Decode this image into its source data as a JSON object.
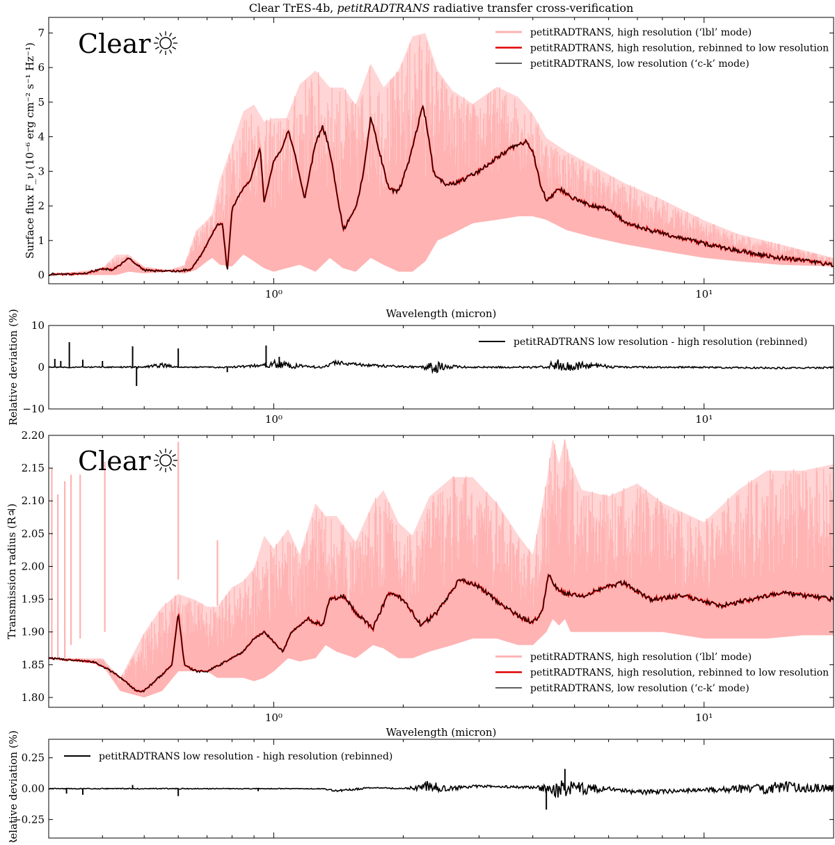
{
  "chart_data": {
    "title": "Clear TrES-4b, petitRADTRANS radiative transfer cross-verification",
    "title_parts": {
      "pre": "Clear TrES-4b, ",
      "italic": "petitRADTRANS",
      "post": " radiative transfer cross-verification"
    },
    "x_scale": "log",
    "xlim": [
      0.3,
      20
    ],
    "x_major_ticks": [
      {
        "value": 1,
        "label": "10⁰"
      },
      {
        "value": 10,
        "label": "10¹"
      }
    ],
    "colors": {
      "high_res": "#ffb3b3",
      "rebinned": "#e00000",
      "low_res": "#000000",
      "axis": "#000000"
    },
    "panels": [
      {
        "type": "line",
        "id": "emission",
        "ylabel": "Surface flux F_ν (10⁻⁶ erg cm⁻² s⁻¹ Hz⁻¹)",
        "xlabel": "Wavelength (micron)",
        "ylim": [
          -0.25,
          7.45
        ],
        "yticks": [
          0,
          1,
          2,
          3,
          4,
          5,
          6,
          7
        ],
        "ytick_labels": [
          "0",
          "1",
          "2",
          "3",
          "4",
          "5",
          "6",
          "7"
        ],
        "annotation": "Clear",
        "annotation_icon": "sun-icon",
        "legend_position": "top-right",
        "series": [
          {
            "name": "petitRADTRANS, high resolution (‘lbl’ mode)",
            "style": "band",
            "x": [
              0.3,
              0.4,
              0.43,
              0.46,
              0.5,
              0.57,
              0.62,
              0.66,
              0.7,
              0.72,
              0.75,
              0.8,
              0.85,
              0.9,
              0.95,
              1.0,
              1.07,
              1.15,
              1.25,
              1.35,
              1.45,
              1.55,
              1.68,
              1.8,
              1.95,
              2.1,
              2.25,
              2.4,
              2.6,
              2.9,
              3.3,
              3.7,
              4.0,
              4.3,
              4.8,
              5.5,
              6.5,
              8,
              10,
              12,
              15,
              20
            ],
            "lower": [
              0,
              0,
              0,
              0.1,
              0.05,
              0.1,
              0.05,
              0.15,
              0.4,
              0.5,
              0.3,
              0.25,
              0.6,
              0.4,
              0.2,
              0.1,
              0.2,
              0.3,
              0.1,
              0.5,
              0.2,
              0.1,
              0.5,
              0.3,
              0.1,
              0.1,
              0.4,
              1.0,
              1.2,
              1.5,
              1.6,
              1.7,
              1.7,
              1.6,
              1.3,
              1.1,
              0.9,
              0.7,
              0.5,
              0.4,
              0.3,
              0.25
            ],
            "upper": [
              0,
              0.2,
              0.6,
              0.6,
              0.25,
              0.15,
              0.3,
              1.3,
              1.6,
              1.8,
              2.8,
              3.8,
              4.8,
              5.0,
              4.5,
              4.6,
              4.6,
              5.6,
              6.0,
              5.5,
              5.5,
              5.0,
              6.2,
              5.5,
              6.0,
              7.0,
              7.1,
              6.0,
              5.4,
              5.0,
              5.5,
              5.2,
              4.7,
              4.0,
              3.6,
              3.2,
              2.7,
              2.2,
              1.6,
              1.2,
              0.9,
              0.5
            ]
          },
          {
            "name": "petitRADTRANS, high resolution, rebinned to low resolution",
            "style": "line",
            "x": [
              0.3,
              0.36,
              0.4,
              0.42,
              0.44,
              0.46,
              0.48,
              0.5,
              0.55,
              0.6,
              0.64,
              0.68,
              0.72,
              0.74,
              0.76,
              0.78,
              0.8,
              0.83,
              0.86,
              0.88,
              0.9,
              0.93,
              0.95,
              1.0,
              1.05,
              1.08,
              1.12,
              1.18,
              1.25,
              1.3,
              1.35,
              1.45,
              1.55,
              1.62,
              1.68,
              1.75,
              1.85,
              1.95,
              2.05,
              2.15,
              2.22,
              2.27,
              2.35,
              2.5,
              2.7,
              3.0,
              3.3,
              3.6,
              3.85,
              4.0,
              4.15,
              4.3,
              4.6,
              5.0,
              5.5,
              6.0,
              6.6,
              7.5,
              9,
              11,
              14,
              20
            ],
            "y": [
              0.02,
              0.03,
              0.18,
              0.15,
              0.3,
              0.5,
              0.3,
              0.15,
              0.12,
              0.12,
              0.15,
              0.6,
              1.2,
              1.45,
              1.5,
              0.1,
              1.9,
              2.3,
              2.6,
              2.7,
              3.1,
              3.7,
              2.1,
              3.3,
              3.7,
              4.2,
              3.5,
              2.2,
              3.8,
              4.3,
              3.6,
              1.3,
              1.9,
              3.0,
              4.6,
              3.7,
              2.5,
              2.4,
              3.2,
              4.2,
              4.9,
              4.3,
              3.0,
              2.6,
              2.7,
              3.0,
              3.4,
              3.7,
              3.85,
              3.6,
              2.7,
              2.15,
              2.5,
              2.2,
              2.0,
              1.9,
              1.5,
              1.3,
              1.05,
              0.8,
              0.55,
              0.3
            ]
          },
          {
            "name": "petitRADTRANS, low resolution (‘c-k’ mode)",
            "style": "line",
            "same_as": "rebinned"
          }
        ]
      },
      {
        "type": "line",
        "id": "emission_residual",
        "ylabel": "Relative deviation (%)",
        "ylim": [
          -10,
          10
        ],
        "yticks": [
          -10,
          0,
          10
        ],
        "ytick_labels": [
          "−10",
          "0",
          "10"
        ],
        "legend_position": "top-right",
        "series": [
          {
            "name": "petitRADTRANS low resolution - high resolution (rebinned)",
            "style": "line",
            "x": [
              0.3,
              0.5,
              0.55,
              0.6,
              0.8,
              0.95,
              1.0,
              1.1,
              1.3,
              1.4,
              1.6,
              1.8,
              2.2,
              2.35,
              2.5,
              2.8,
              3.5,
              4.3,
              4.5,
              5.0,
              5.5,
              6.5,
              9,
              15,
              20
            ],
            "y": [
              0,
              0,
              0.5,
              0,
              0,
              0.5,
              0.8,
              0.3,
              0,
              1.2,
              0.5,
              0.3,
              0,
              0,
              0.3,
              0,
              0,
              0,
              0.7,
              0.2,
              0.4,
              0,
              0,
              -0.2,
              -0.1
            ],
            "noise": [
              0.1,
              0.2,
              0.6,
              0.1,
              0.2,
              0.4,
              1.0,
              0.6,
              0.2,
              0.5,
              0.4,
              0.3,
              0.2,
              1.6,
              0.8,
              0.2,
              0.2,
              0.3,
              1.5,
              1.2,
              0.6,
              0.2,
              0.2,
              0.2,
              0.2
            ],
            "spikes": [
              [
                0.31,
                2
              ],
              [
                0.32,
                1.5
              ],
              [
                0.335,
                6
              ],
              [
                0.36,
                1.8
              ],
              [
                0.4,
                1.5
              ],
              [
                0.47,
                5
              ],
              [
                0.48,
                -4.5
              ],
              [
                0.6,
                4.5
              ],
              [
                0.78,
                -1.2
              ],
              [
                0.96,
                5.2
              ],
              [
                1.03,
                2.5
              ]
            ]
          }
        ]
      },
      {
        "type": "line",
        "id": "transmission",
        "ylabel": "Transmission radius (R♃)",
        "xlabel": "Wavelength (micron)",
        "ylim": [
          1.785,
          2.2
        ],
        "yticks": [
          1.8,
          1.85,
          1.9,
          1.95,
          2.0,
          2.05,
          2.1,
          2.15,
          2.2
        ],
        "ytick_labels": [
          "1.80",
          "1.85",
          "1.90",
          "1.95",
          "2.00",
          "2.05",
          "2.10",
          "2.15",
          "2.20"
        ],
        "annotation": "Clear",
        "annotation_icon": "sun-icon",
        "legend_position": "bottom-right",
        "series": [
          {
            "name": "petitRADTRANS, high resolution (‘lbl’ mode)",
            "style": "band",
            "x": [
              0.3,
              0.4,
              0.44,
              0.5,
              0.55,
              0.6,
              0.66,
              0.7,
              0.74,
              0.8,
              0.85,
              0.9,
              0.95,
              1.0,
              1.08,
              1.15,
              1.25,
              1.32,
              1.4,
              1.55,
              1.7,
              1.8,
              1.95,
              2.1,
              2.3,
              2.6,
              2.9,
              3.3,
              3.7,
              4.0,
              4.3,
              4.45,
              4.6,
              4.75,
              4.9,
              5.2,
              6.0,
              7,
              8,
              10,
              12,
              14,
              17,
              20
            ],
            "lower": [
              1.86,
              1.85,
              1.81,
              1.8,
              1.81,
              1.84,
              1.84,
              1.84,
              1.83,
              1.83,
              1.83,
              1.825,
              1.83,
              1.84,
              1.86,
              1.855,
              1.86,
              1.88,
              1.87,
              1.86,
              1.88,
              1.875,
              1.86,
              1.86,
              1.87,
              1.88,
              1.89,
              1.89,
              1.88,
              1.88,
              1.9,
              1.92,
              1.91,
              1.92,
              1.9,
              1.9,
              1.9,
              1.9,
              1.9,
              1.89,
              1.89,
              1.89,
              1.895,
              1.895
            ],
            "upper": [
              1.86,
              1.86,
              1.83,
              1.9,
              1.94,
              1.96,
              1.95,
              1.94,
              1.94,
              1.97,
              1.98,
              2.0,
              2.05,
              2.03,
              2.06,
              2.02,
              2.1,
              2.08,
              2.08,
              2.04,
              2.1,
              2.12,
              2.07,
              2.05,
              2.11,
              2.14,
              2.14,
              2.1,
              2.05,
              2.02,
              2.13,
              2.2,
              2.16,
              2.2,
              2.16,
              2.12,
              2.11,
              2.13,
              2.1,
              2.07,
              2.12,
              2.15,
              2.15,
              2.16
            ]
          },
          {
            "name": "petitRADTRANS, high resolution, rebinned to low resolution",
            "style": "line",
            "x": [
              0.3,
              0.34,
              0.38,
              0.42,
              0.44,
              0.46,
              0.48,
              0.5,
              0.55,
              0.58,
              0.6,
              0.62,
              0.66,
              0.7,
              0.75,
              0.8,
              0.85,
              0.9,
              0.95,
              1.0,
              1.05,
              1.1,
              1.15,
              1.2,
              1.3,
              1.35,
              1.45,
              1.55,
              1.7,
              1.85,
              2.0,
              2.2,
              2.4,
              2.7,
              3.0,
              3.4,
              3.8,
              4.0,
              4.2,
              4.35,
              4.5,
              4.7,
              5.2,
              6.0,
              6.5,
              7.5,
              9,
              11,
              13,
              15,
              20
            ],
            "y": [
              1.86,
              1.857,
              1.855,
              1.84,
              1.83,
              1.82,
              1.81,
              1.81,
              1.835,
              1.85,
              1.93,
              1.85,
              1.84,
              1.84,
              1.85,
              1.86,
              1.87,
              1.89,
              1.9,
              1.885,
              1.87,
              1.9,
              1.91,
              1.92,
              1.91,
              1.95,
              1.955,
              1.93,
              1.905,
              1.96,
              1.95,
              1.91,
              1.93,
              1.98,
              1.97,
              1.94,
              1.92,
              1.915,
              1.93,
              1.99,
              1.97,
              1.96,
              1.955,
              1.97,
              1.975,
              1.95,
              1.955,
              1.94,
              1.95,
              1.96,
              1.95
            ]
          },
          {
            "name": "petitRADTRANS, low resolution (‘c-k’ mode)",
            "style": "line",
            "same_as": "rebinned"
          }
        ],
        "narrow_lines": [
          [
            0.305,
            1.86,
            2.15
          ],
          [
            0.315,
            1.86,
            2.11
          ],
          [
            0.327,
            1.86,
            2.13
          ],
          [
            0.338,
            1.88,
            2.14
          ],
          [
            0.355,
            1.89,
            2.14
          ],
          [
            0.405,
            1.9,
            2.16
          ],
          [
            0.6,
            1.98,
            2.19
          ],
          [
            0.74,
            1.94,
            2.04
          ]
        ]
      },
      {
        "type": "line",
        "id": "transmission_residual",
        "ylabel": "Relative deviation (%)",
        "ylim": [
          -0.4,
          0.4
        ],
        "yticks": [
          -0.25,
          0.0,
          0.25
        ],
        "ytick_labels": [
          "−0.25",
          "0.00",
          "0.25"
        ],
        "legend_position": "top-left",
        "series": [
          {
            "name": "petitRADTRANS low resolution - high resolution (rebinned)",
            "style": "line",
            "x": [
              0.3,
              0.6,
              1.0,
              1.3,
              1.4,
              1.7,
              2.0,
              2.3,
              2.5,
              3.0,
              4.0,
              4.4,
              4.6,
              5.2,
              6.0,
              7.0,
              10,
              13,
              15,
              17,
              20
            ],
            "y": [
              0,
              0,
              0,
              0,
              -0.02,
              0.01,
              0,
              0.02,
              0,
              0.02,
              0.01,
              0,
              -0.01,
              0,
              0,
              -0.03,
              -0.01,
              0,
              0.01,
              0.01,
              0
            ],
            "noise": [
              0.003,
              0.004,
              0.003,
              0.003,
              0.01,
              0.005,
              0.005,
              0.05,
              0.02,
              0.01,
              0.01,
              0.04,
              0.08,
              0.05,
              0.015,
              0.02,
              0.015,
              0.04,
              0.05,
              0.04,
              0.03
            ],
            "spikes": [
              [
                0.33,
                -0.04
              ],
              [
                0.36,
                -0.05
              ],
              [
                0.47,
                0.03
              ],
              [
                0.6,
                -0.06
              ],
              [
                0.92,
                -0.02
              ],
              [
                4.3,
                -0.17
              ],
              [
                4.75,
                0.16
              ]
            ]
          }
        ]
      }
    ]
  }
}
